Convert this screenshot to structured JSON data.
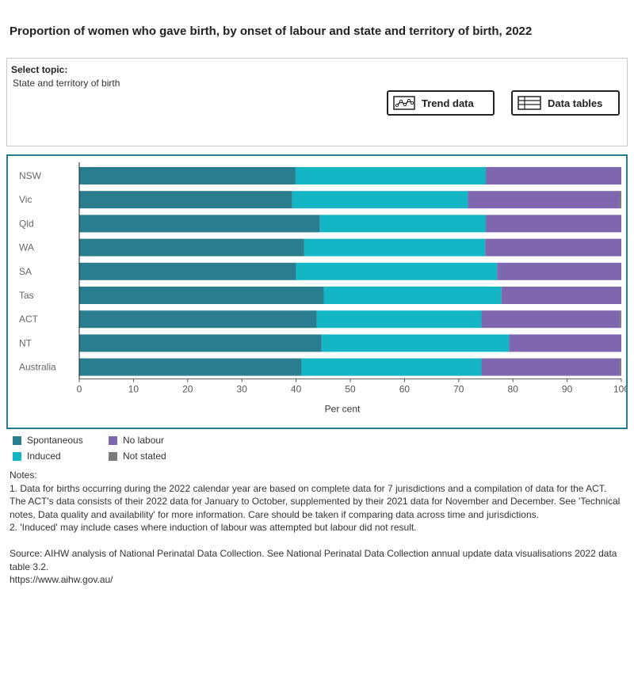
{
  "title": "Proportion of women who gave birth, by onset of labour and state and territory of birth, 2022",
  "topic": {
    "label": "Select topic:",
    "value": "State and territory of birth"
  },
  "buttons": {
    "trend": "Trend data",
    "tables": "Data tables"
  },
  "colors": {
    "spontaneous": "#2a7d8f",
    "induced": "#14b6c6",
    "no_labour": "#7f67b0",
    "not_stated": "#7b7b7b",
    "frame": "#2a7d8c"
  },
  "chart_data": {
    "type": "bar",
    "orientation": "horizontal",
    "stacked": true,
    "categories": [
      "NSW",
      "Vic",
      "Qld",
      "WA",
      "SA",
      "Tas",
      "ACT",
      "NT",
      "Australia"
    ],
    "series": [
      {
        "name": "Spontaneous",
        "values": [
          39.9,
          39.3,
          44.4,
          41.5,
          40.0,
          45.1,
          43.8,
          44.7,
          41.0
        ]
      },
      {
        "name": "Induced",
        "values": [
          35.1,
          32.4,
          30.6,
          33.4,
          37.1,
          32.8,
          30.4,
          34.6,
          33.2
        ]
      },
      {
        "name": "No labour",
        "values": [
          25.0,
          28.0,
          25.0,
          25.1,
          22.9,
          22.1,
          25.6,
          20.7,
          25.6
        ]
      },
      {
        "name": "Not stated",
        "values": [
          0.0,
          0.3,
          0.0,
          0.0,
          0.0,
          0.0,
          0.2,
          0.0,
          0.2
        ]
      }
    ],
    "xlabel": "Per cent",
    "xticks": [
      "0",
      "10",
      "20",
      "30",
      "40",
      "50",
      "60",
      "70",
      "80",
      "90",
      "100"
    ],
    "xlim": [
      0,
      100
    ],
    "grid": false,
    "legend_position": "bottom-left"
  },
  "legend": {
    "spontaneous": "Spontaneous",
    "no_labour": "No labour",
    "induced": "Induced",
    "not_stated": "Not stated"
  },
  "notes": {
    "heading": "Notes:",
    "note1": "1. Data for births occurring during the 2022 calendar year are based on complete data for 7 jurisdictions and a compilation of data for the ACT. The ACT's data consists of their 2022 data for January to October, supplemented by their 2021 data for November and December. See 'Technical notes, Data quality and availability' for more information. Care should be taken if comparing data across time and jurisdictions.",
    "note2": "2. 'Induced' may include cases where induction of labour was attempted but labour did not result.",
    "source": "Source: AIHW analysis of National Perinatal Data Collection. See National Perinatal Data Collection annual update data visualisations 2022 data table 3.2.",
    "url": "https://www.aihw.gov.au/"
  }
}
